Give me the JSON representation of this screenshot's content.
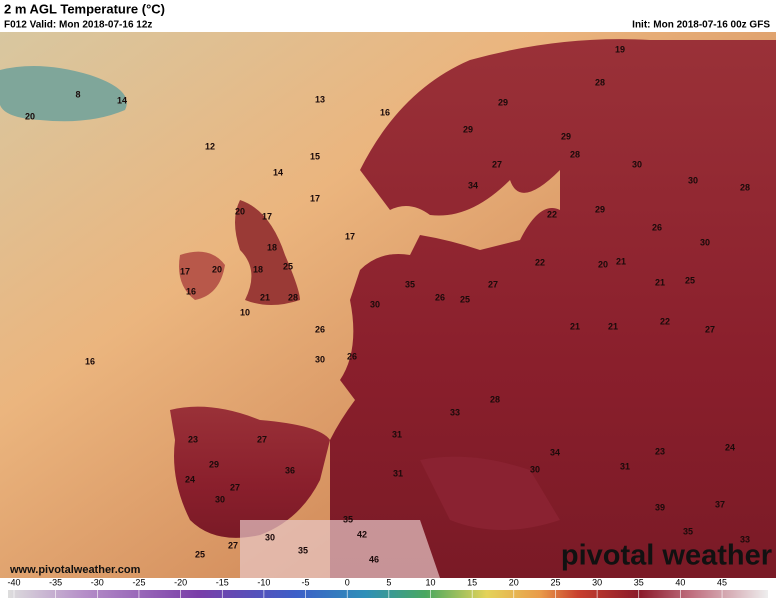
{
  "header": {
    "title": "2 m AGL Temperature (°C)",
    "valid": "F012 Valid: Mon 2018-07-16 12z",
    "init": "Init: Mon 2018-07-16 00z GFS"
  },
  "map_labels": [
    20,
    8,
    14,
    13,
    16,
    12,
    15,
    14,
    17,
    17,
    16,
    20,
    17,
    18,
    17,
    20,
    16,
    10,
    18,
    21,
    25,
    28,
    26,
    30,
    26,
    30,
    35,
    26,
    25,
    27,
    19,
    28,
    29,
    29,
    27,
    34,
    29,
    28,
    30,
    30,
    28,
    22,
    29,
    26,
    30,
    22,
    20,
    21,
    21,
    25,
    21,
    21,
    22,
    27,
    28,
    33,
    31,
    31,
    42,
    46,
    35,
    35,
    25,
    27,
    30,
    30,
    23,
    29,
    27,
    36,
    27,
    24,
    39,
    35,
    37,
    33,
    31,
    23,
    24,
    34,
    30
  ],
  "watermark": "www.pivotalweather.com",
  "brand": "pivotal weather",
  "colorbar": {
    "lim": [
      -40,
      50
    ],
    "ticks": [
      -40,
      -35,
      -30,
      -25,
      -20,
      -15,
      -10,
      -5,
      0,
      5,
      10,
      15,
      20,
      25,
      30,
      35,
      40,
      45
    ]
  }
}
